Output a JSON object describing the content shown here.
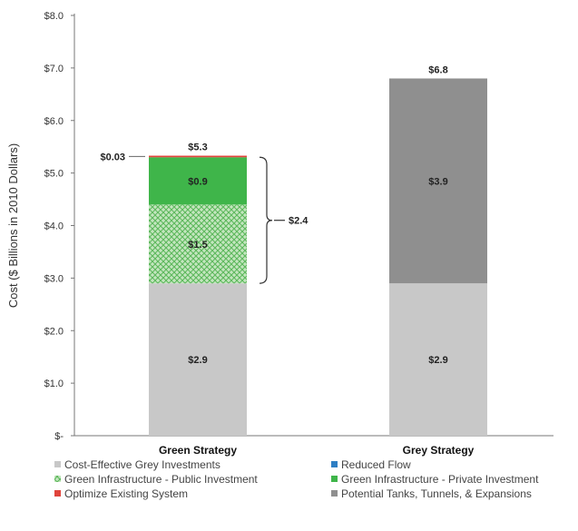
{
  "chart_data": {
    "type": "bar",
    "stacked": true,
    "ylabel": "Cost ($ Billions in 2010 Dollars)",
    "ylim": [
      0,
      8
    ],
    "yticks": [
      "$-",
      "$1.0",
      "$2.0",
      "$3.0",
      "$4.0",
      "$5.0",
      "$6.0",
      "$7.0",
      "$8.0"
    ],
    "grid": false,
    "legend_position": "bottom",
    "categories": [
      "Green Strategy",
      "Grey Strategy"
    ],
    "series": [
      {
        "name": "Cost-Effective Grey Investments",
        "color": "#c8c8c8",
        "pattern": false,
        "values": [
          2.9,
          2.9
        ],
        "labels": [
          "$2.9",
          "$2.9"
        ]
      },
      {
        "name": "Reduced Flow",
        "color": "#2e7fc4",
        "pattern": false,
        "values": [
          0,
          0
        ],
        "labels": [
          "",
          ""
        ]
      },
      {
        "name": "Green Infrastructure - Public Investment",
        "color": "#5cb85c",
        "pattern": true,
        "values": [
          1.5,
          0
        ],
        "labels": [
          "$1.5",
          ""
        ]
      },
      {
        "name": "Green Infrastructure - Private Investment",
        "color": "#3fb54a",
        "pattern": false,
        "values": [
          0.9,
          0
        ],
        "labels": [
          "$0.9",
          ""
        ]
      },
      {
        "name": "Optimize Existing System",
        "color": "#e0443c",
        "pattern": false,
        "values": [
          0.03,
          0
        ],
        "labels": [
          "",
          ""
        ]
      },
      {
        "name": "Potential Tanks, Tunnels, & Expansions",
        "color": "#8f8f8f",
        "pattern": false,
        "values": [
          0,
          3.9
        ],
        "labels": [
          "",
          "$3.9"
        ]
      }
    ],
    "totals": [
      "$5.3",
      "$6.8"
    ],
    "annotations": [
      {
        "text": "$0.03",
        "note": "Optimize Existing System (Green Strategy)"
      },
      {
        "text": "$2.4",
        "note": "bracket: Green Infrastructure total"
      }
    ]
  }
}
